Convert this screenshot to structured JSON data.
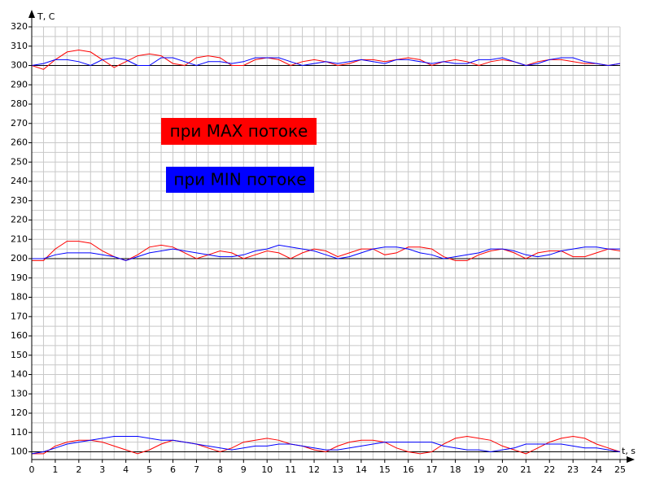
{
  "chart_data": {
    "type": "line",
    "y_label": "T, C",
    "x_label": "t, s",
    "x": [
      0,
      0.5,
      1,
      1.5,
      2,
      2.5,
      3,
      3.5,
      4,
      4.5,
      5,
      5.5,
      6,
      6.5,
      7,
      7.5,
      8,
      8.5,
      9,
      9.5,
      10,
      10.5,
      11,
      11.5,
      12,
      12.5,
      13,
      13.5,
      14,
      14.5,
      15,
      15.5,
      16,
      16.5,
      17,
      17.5,
      18,
      18.5,
      19,
      19.5,
      20,
      20.5,
      21,
      21.5,
      22,
      22.5,
      23,
      23.5,
      24,
      24.5,
      25
    ],
    "series": [
      {
        "color": "#ff0000",
        "values": [
          300,
          298,
          303,
          307,
          308,
          307,
          303,
          299,
          302,
          305,
          306,
          305,
          301,
          300,
          304,
          305,
          304,
          300,
          300,
          303,
          304,
          303,
          300,
          302,
          303,
          302,
          300,
          301,
          303,
          303,
          302,
          303,
          304,
          303,
          300,
          302,
          303,
          302,
          300,
          302,
          303,
          302,
          300,
          302,
          303,
          303,
          302,
          301,
          301,
          300,
          301
        ]
      },
      {
        "color": "#0000ff",
        "values": [
          300,
          301,
          303,
          303,
          302,
          300,
          303,
          304,
          303,
          300,
          300,
          304,
          304,
          302,
          300,
          302,
          302,
          301,
          302,
          304,
          304,
          304,
          302,
          300,
          301,
          302,
          301,
          302,
          303,
          302,
          301,
          303,
          303,
          302,
          301,
          302,
          301,
          301,
          303,
          303,
          304,
          302,
          300,
          301,
          303,
          304,
          304,
          302,
          301,
          300,
          301
        ]
      },
      {
        "color": "#ff0000",
        "values": [
          199,
          199,
          205,
          209,
          209,
          208,
          204,
          201,
          199,
          202,
          206,
          207,
          206,
          203,
          200,
          202,
          204,
          203,
          200,
          202,
          204,
          203,
          200,
          203,
          205,
          204,
          201,
          203,
          205,
          205,
          202,
          203,
          206,
          206,
          205,
          201,
          199,
          199,
          202,
          204,
          205,
          203,
          200,
          203,
          204,
          204,
          201,
          201,
          203,
          205,
          204
        ]
      },
      {
        "color": "#0000ff",
        "values": [
          200,
          200,
          202,
          203,
          203,
          203,
          202,
          201,
          199,
          201,
          203,
          204,
          205,
          204,
          203,
          202,
          201,
          201,
          202,
          204,
          205,
          207,
          206,
          205,
          204,
          202,
          200,
          201,
          203,
          205,
          206,
          206,
          205,
          203,
          202,
          200,
          201,
          202,
          203,
          205,
          205,
          204,
          202,
          201,
          202,
          204,
          205,
          206,
          206,
          205,
          205
        ]
      },
      {
        "color": "#ff0000",
        "values": [
          99,
          99,
          103,
          105,
          106,
          106,
          105,
          103,
          101,
          99,
          101,
          104,
          106,
          105,
          104,
          102,
          100,
          102,
          105,
          106,
          107,
          106,
          104,
          103,
          101,
          100,
          103,
          105,
          106,
          106,
          105,
          102,
          100,
          99,
          100,
          104,
          107,
          108,
          107,
          106,
          103,
          101,
          99,
          102,
          105,
          107,
          108,
          107,
          104,
          102,
          100
        ]
      },
      {
        "color": "#0000ff",
        "values": [
          99,
          100,
          102,
          104,
          105,
          106,
          107,
          108,
          108,
          108,
          107,
          106,
          106,
          105,
          104,
          103,
          102,
          101,
          102,
          103,
          103,
          104,
          104,
          103,
          102,
          101,
          101,
          102,
          103,
          104,
          105,
          105,
          105,
          105,
          105,
          103,
          102,
          101,
          101,
          100,
          101,
          102,
          104,
          104,
          104,
          104,
          103,
          102,
          102,
          101,
          100
        ]
      }
    ],
    "reference_lines": [
      300,
      200,
      100
    ],
    "reference_color": "#000000",
    "annotations": [
      {
        "text": "при MAX потоке",
        "background": "#ff0000"
      },
      {
        "text": "при MIN потоке",
        "background": "#0000ff"
      }
    ],
    "xlim": [
      0,
      25
    ],
    "ylim": [
      96,
      320
    ],
    "xticks": [
      0,
      1,
      2,
      3,
      4,
      5,
      6,
      7,
      8,
      9,
      10,
      11,
      12,
      13,
      14,
      15,
      16,
      17,
      18,
      19,
      20,
      21,
      22,
      23,
      24,
      25
    ],
    "yticks": [
      100,
      110,
      120,
      130,
      140,
      150,
      160,
      170,
      180,
      190,
      200,
      210,
      220,
      230,
      240,
      250,
      260,
      270,
      280,
      290,
      300,
      310,
      320
    ],
    "grid": true
  }
}
